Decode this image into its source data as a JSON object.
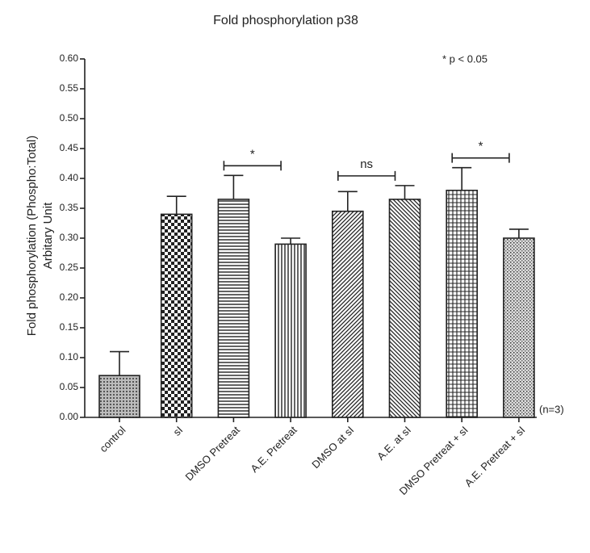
{
  "chart_data": {
    "type": "bar",
    "title": "Fold phosphorylation p38",
    "y_label": "Fold phosphorylation (Phospho:Total)",
    "y_label_2": "Arbitary Unit",
    "categories": [
      "control",
      "sI",
      "DMSO Pretreat",
      "A.E. Pretreat",
      "DMSO at sI",
      "A.E. at sI",
      "DMSO Pretreat + sI",
      "A.E. Pretreat + sI"
    ],
    "values": [
      0.07,
      0.34,
      0.365,
      0.29,
      0.345,
      0.365,
      0.38,
      0.3
    ],
    "errors": [
      0.04,
      0.03,
      0.04,
      0.01,
      0.033,
      0.023,
      0.038,
      0.015
    ],
    "color": "#222222",
    "ylim": [
      0,
      0.6
    ],
    "yticks": [
      {
        "value": 0,
        "label": "0.00"
      },
      {
        "value": 0.05,
        "label": "0.05"
      },
      {
        "value": 0.1,
        "label": "0.10"
      },
      {
        "value": 0.15,
        "label": "0.15"
      },
      {
        "value": 0.2,
        "label": "0.20"
      },
      {
        "value": 0.25,
        "label": "0.25"
      },
      {
        "value": 0.3,
        "label": "0.30"
      },
      {
        "value": 0.35,
        "label": "0.35"
      },
      {
        "value": 0.4,
        "label": "0.40"
      },
      {
        "value": 0.45,
        "label": "0.45"
      },
      {
        "value": 0.5,
        "label": "0.50"
      },
      {
        "value": 0.55,
        "label": "0.55"
      },
      {
        "value": 0.6,
        "label": "0.60"
      }
    ],
    "comparisons": [
      {
        "label": "*"
      },
      {
        "label": "ns"
      },
      {
        "label": "*"
      }
    ],
    "legend_note": "* p < 0.05",
    "sample_note": "(n=3)"
  }
}
